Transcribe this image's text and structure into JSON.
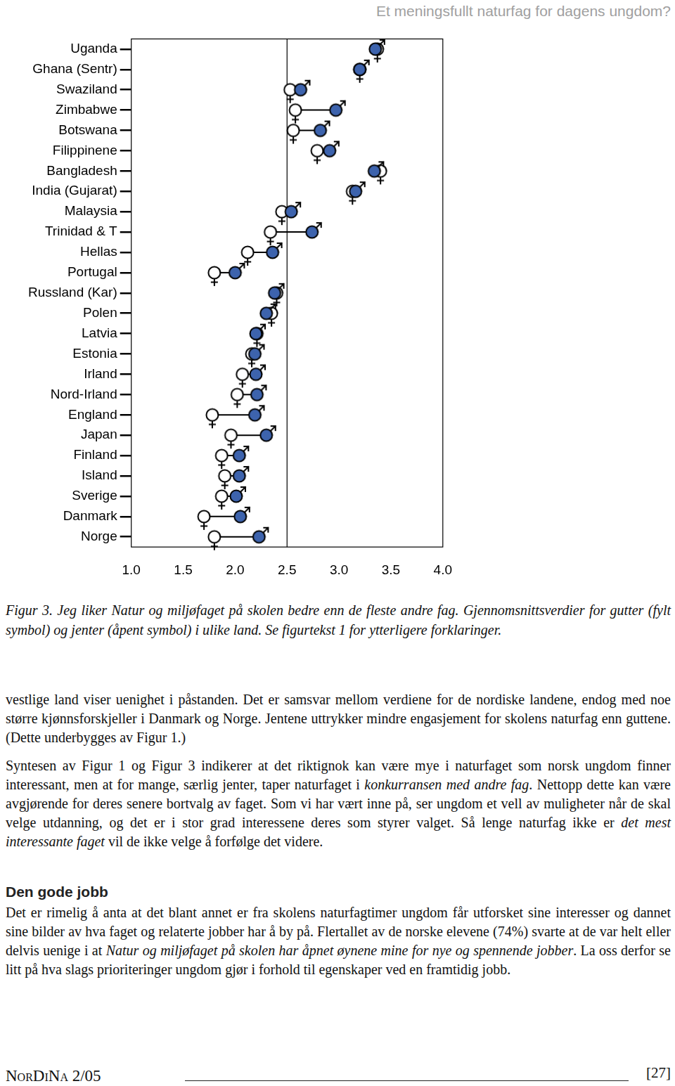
{
  "header": "Et meningsfullt naturfag for dagens ungdom?",
  "chart_data": {
    "type": "dumbbell",
    "categories": [
      "Uganda",
      "Ghana (Sentr)",
      "Swaziland",
      "Zimbabwe",
      "Botswana",
      "Filippinene",
      "Bangladesh",
      "India (Gujarat)",
      "Malaysia",
      "Trinidad & T",
      "Hellas",
      "Portugal",
      "Russland (Kar)",
      "Polen",
      "Latvia",
      "Estonia",
      "Irland",
      "Nord-Irland",
      "England",
      "Japan",
      "Finland",
      "Island",
      "Sverige",
      "Danmark",
      "Norge"
    ],
    "series": [
      {
        "marker": "male",
        "color": "#3d63ad",
        "values": [
          3.35,
          3.2,
          2.63,
          2.97,
          2.82,
          2.91,
          3.34,
          3.16,
          2.54,
          2.74,
          2.36,
          2.0,
          2.38,
          2.3,
          2.2,
          2.19,
          2.2,
          2.21,
          2.19,
          2.3,
          2.04,
          2.04,
          2.01,
          2.05,
          2.23
        ]
      },
      {
        "marker": "female",
        "color": "#ffffff",
        "values": [
          3.37,
          3.2,
          2.53,
          2.58,
          2.56,
          2.79,
          3.4,
          3.13,
          2.45,
          2.34,
          2.12,
          1.8,
          2.4,
          2.35,
          2.21,
          2.16,
          2.07,
          2.02,
          1.78,
          1.96,
          1.87,
          1.9,
          1.87,
          1.7,
          1.8
        ]
      }
    ],
    "xlim": [
      1.0,
      4.0
    ],
    "xticks": [
      {
        "value": 1,
        "label": "1.0"
      },
      {
        "value": 1.5,
        "label": "1.5"
      },
      {
        "value": 2,
        "label": "2.0"
      },
      {
        "value": 2.5,
        "label": "2.5"
      },
      {
        "value": 3,
        "label": "3.0"
      },
      {
        "value": 3.5,
        "label": "3.5"
      },
      {
        "value": 4,
        "label": "4.0"
      }
    ],
    "xline": 2.5,
    "grid": false
  },
  "caption": [
    {
      "text": "Figur 3. Jeg liker Natur og miljøfaget på skolen bedre enn de fleste andre fag. Gjennomsnittsverdier for gutter (fylt symbol) og jenter (åpent symbol) i ulike land. Se figurtekst 1 for ytterligere forklaringer.",
      "italic": true
    }
  ],
  "body": [
    {
      "p": [
        {
          "text": "vestlige land viser uenighet i påstanden. Det er samsvar mellom verdiene for de nordiske landene, endog med noe større kjønnsforskjeller i Danmark og Norge. Jentene uttrykker mindre engasjement for skolens naturfag enn guttene. (Dette underbygges av Figur 1.)",
          "italic": false
        }
      ]
    },
    {
      "p": [
        {
          "text": "Syntesen av Figur 1 og Figur 3 indikerer at det riktignok kan være mye i naturfaget som norsk ungdom finner interessant, men at for mange, særlig jenter, taper naturfaget i ",
          "italic": false
        },
        {
          "text": "konkurransen med andre fag",
          "italic": true
        },
        {
          "text": ". Nettopp dette kan være avgjørende for deres senere bortvalg av faget. Som vi har vært inne på, ser ungdom et vell av muligheter når de skal velge utdanning, og det er i stor grad interessene deres som styrer valget. Så lenge naturfag ikke er ",
          "italic": false
        },
        {
          "text": "det mest interessante faget",
          "italic": true
        },
        {
          "text": " vil de ikke velge å forfølge det videre.",
          "italic": false
        }
      ]
    },
    {
      "h": "Den gode jobb"
    },
    {
      "p": [
        {
          "text": "Det er rimelig å anta at det blant annet er fra skolens naturfagtimer ungdom får utforsket sine interesser og dannet sine bilder av hva faget og relaterte jobber har å by på. Flertallet av de norske elevene (74%) svarte at de var helt eller delvis uenige i at ",
          "italic": false
        },
        {
          "text": "Natur og miljøfaget på skolen har åpnet øynene mine for nye og spennende jobber",
          "italic": true
        },
        {
          "text": ". La oss derfor se litt på hva slags prioriteringer ungdom gjør i forhold til egenskaper ved en framtidig jobb.",
          "italic": false
        }
      ]
    }
  ],
  "footer": {
    "journal": "NorDiNa 2/05",
    "page": "[27]"
  }
}
